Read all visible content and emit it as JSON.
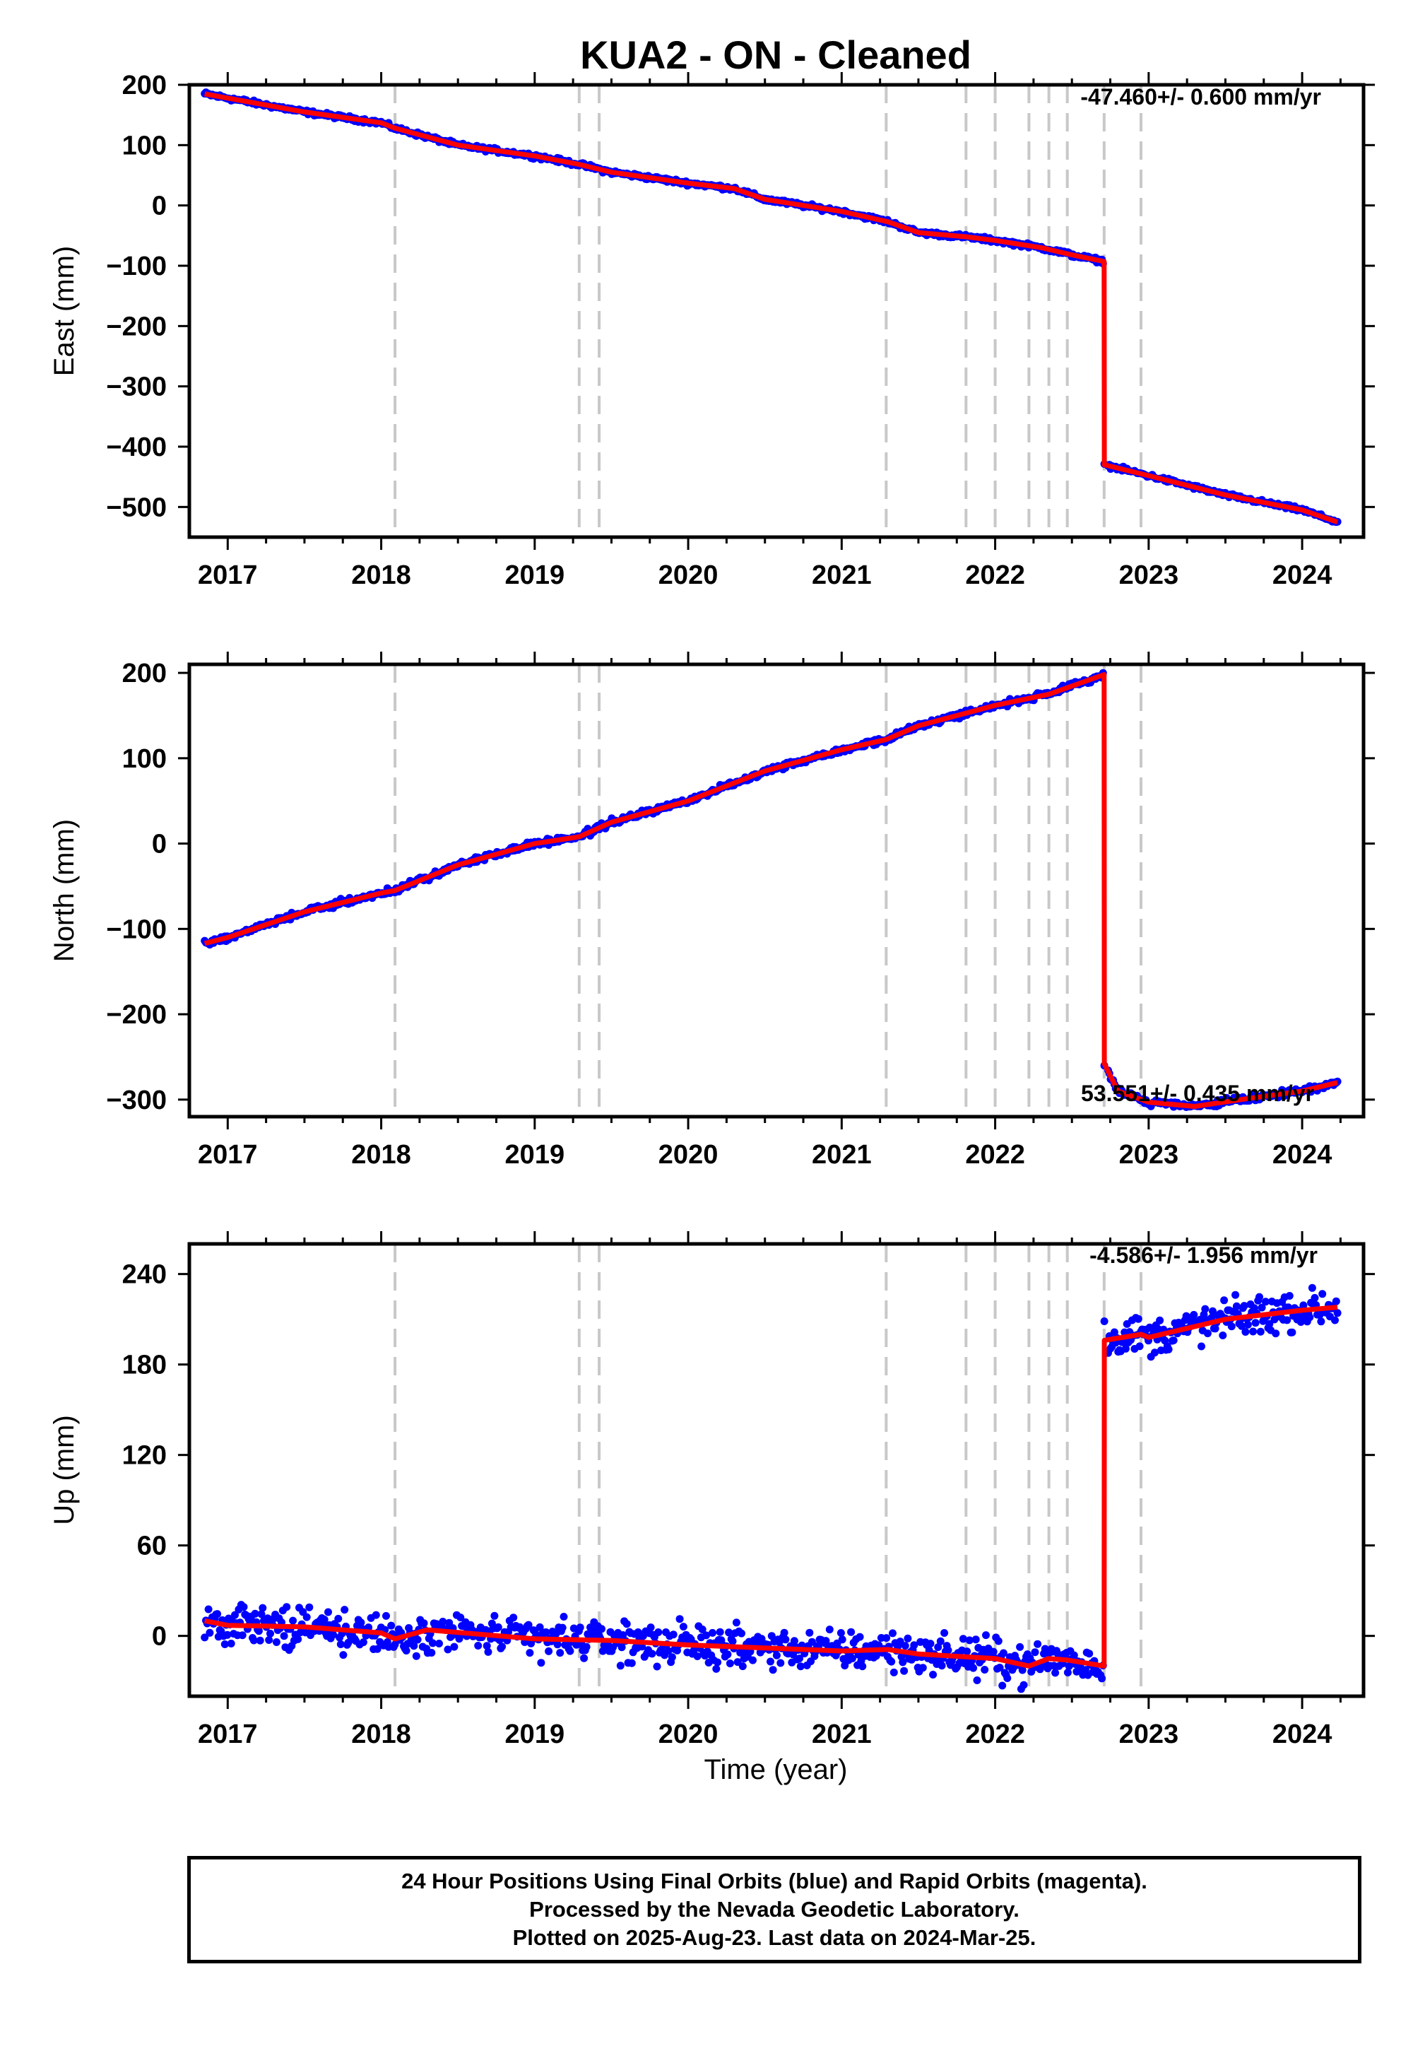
{
  "title": "KUA2  - ON - Cleaned",
  "xlabel": "Time (year)",
  "x_ticks": [
    "2017",
    "2018",
    "2019",
    "2020",
    "2021",
    "2022",
    "2023",
    "2024"
  ],
  "xlim": [
    2016.75,
    2024.4
  ],
  "step_lines": [
    2018.09,
    2019.29,
    2019.42,
    2021.29,
    2021.81,
    2022.0,
    2022.22,
    2022.35,
    2022.47,
    2022.71,
    2022.95
  ],
  "colors": {
    "points": "#0000ff",
    "fit": "#ff0000",
    "steps": "#c8c8c8",
    "frame": "#000000"
  },
  "footer": {
    "line1": "24 Hour Positions Using Final Orbits (blue) and Rapid Orbits (magenta).",
    "line2": "Processed by the Nevada Geodetic Laboratory.",
    "line3": "Plotted on 2025-Aug-23. Last data on 2024-Mar-25."
  },
  "chart_data": [
    {
      "type": "scatter",
      "ylabel": "East (mm)",
      "rate_text": "-47.460+/- 0.600 mm/yr",
      "ylim": [
        -550,
        200
      ],
      "y_ticks": [
        "200",
        "100",
        "0",
        "−100",
        "−200",
        "−300",
        "−400",
        "−500"
      ],
      "y_tick_values": [
        200,
        100,
        0,
        -100,
        -200,
        -300,
        -400,
        -500
      ],
      "series": [
        {
          "values_x": [
            2016.85,
            2017.0,
            2017.5,
            2018.0,
            2018.09,
            2018.5,
            2019.0,
            2019.29,
            2019.5,
            2020.0,
            2020.3,
            2020.5,
            2021.0,
            2021.3,
            2021.5,
            2021.81,
            2022.0,
            2022.3,
            2022.5,
            2022.71,
            2022.711,
            2023.0,
            2023.5,
            2024.0,
            2024.23
          ],
          "values_y": [
            185,
            178,
            155,
            137,
            128,
            100,
            82,
            68,
            55,
            37,
            28,
            10,
            -10,
            -27,
            -45,
            -52,
            -58,
            -70,
            -82,
            -93,
            -430,
            -448,
            -480,
            -505,
            -525
          ]
        }
      ]
    },
    {
      "type": "scatter",
      "ylabel": "North (mm)",
      "rate_text": "53.551+/- 0.435 mm/yr",
      "ylim": [
        -320,
        210
      ],
      "y_ticks": [
        "200",
        "100",
        "0",
        "−100",
        "−200",
        "−300"
      ],
      "y_tick_values": [
        200,
        100,
        0,
        -100,
        -200,
        -300
      ],
      "series": [
        {
          "values_x": [
            2016.85,
            2017.0,
            2017.5,
            2018.0,
            2018.09,
            2018.5,
            2019.0,
            2019.29,
            2019.5,
            2020.0,
            2020.5,
            2021.0,
            2021.29,
            2021.5,
            2022.0,
            2022.35,
            2022.71,
            2022.711,
            2022.8,
            2023.0,
            2023.3,
            2023.6,
            2024.0,
            2024.23
          ],
          "values_y": [
            -117,
            -110,
            -80,
            -58,
            -55,
            -25,
            0,
            8,
            25,
            50,
            85,
            110,
            122,
            138,
            162,
            175,
            198,
            -258,
            -290,
            -303,
            -308,
            -300,
            -290,
            -280
          ]
        }
      ]
    },
    {
      "type": "scatter",
      "ylabel": "Up (mm)",
      "rate_text": "-4.586+/- 1.956 mm/yr",
      "ylim": [
        -40,
        260
      ],
      "y_ticks": [
        "240",
        "180",
        "120",
        "60",
        "0"
      ],
      "y_tick_values": [
        240,
        180,
        120,
        60,
        0
      ],
      "series": [
        {
          "values_x": [
            2016.85,
            2017.0,
            2017.5,
            2018.0,
            2018.09,
            2018.3,
            2019.0,
            2019.5,
            2020.0,
            2020.5,
            2021.0,
            2021.3,
            2021.5,
            2022.0,
            2022.22,
            2022.35,
            2022.47,
            2022.71,
            2022.711,
            2022.95,
            2023.0,
            2023.5,
            2024.0,
            2024.23
          ],
          "values_y": [
            10,
            7,
            6,
            2,
            -2,
            4,
            -2,
            -3,
            -6,
            -8,
            -10,
            -9,
            -12,
            -15,
            -20,
            -15,
            -16,
            -20,
            196,
            200,
            198,
            210,
            216,
            218
          ]
        }
      ]
    }
  ]
}
